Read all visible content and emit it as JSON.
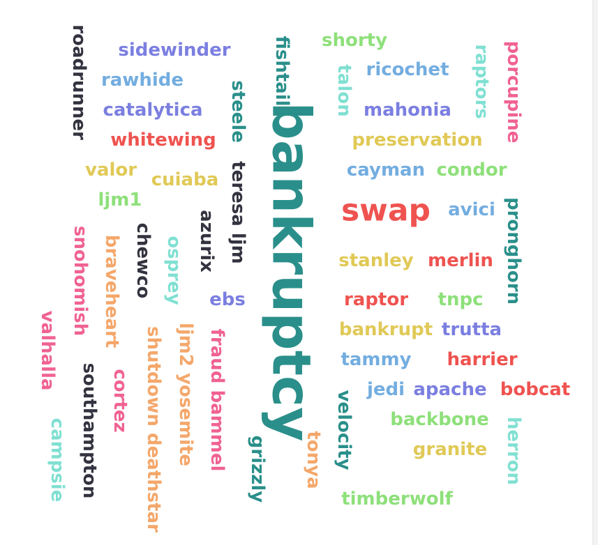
{
  "colors": {
    "coral": "#ef5350",
    "pink": "#f06292",
    "teal": "#2a8f8a",
    "aqua": "#80e0d2",
    "blue": "#73ade0",
    "violet": "#7b7fe0",
    "green": "#8ee07a",
    "yellow": "#e0c956",
    "orange": "#f4a76a",
    "dark": "#333340"
  },
  "words": [
    {
      "text": "bankruptcy",
      "color": "teal"
    },
    {
      "text": "swap",
      "color": "coral"
    },
    {
      "text": "roadrunner",
      "color": "dark"
    },
    {
      "text": "sidewinder",
      "color": "violet"
    },
    {
      "text": "rawhide",
      "color": "blue"
    },
    {
      "text": "catalytica",
      "color": "violet"
    },
    {
      "text": "whitewing",
      "color": "coral"
    },
    {
      "text": "valor",
      "color": "yellow"
    },
    {
      "text": "cuiaba",
      "color": "yellow"
    },
    {
      "text": "ljm1",
      "color": "green"
    },
    {
      "text": "fishtail",
      "color": "teal"
    },
    {
      "text": "steele",
      "color": "teal"
    },
    {
      "text": "teresa ljm",
      "color": "dark"
    },
    {
      "text": "azurix",
      "color": "dark"
    },
    {
      "text": "shorty",
      "color": "green"
    },
    {
      "text": "talon",
      "color": "aqua"
    },
    {
      "text": "ricochet",
      "color": "blue"
    },
    {
      "text": "mahonia",
      "color": "violet"
    },
    {
      "text": "raptors",
      "color": "aqua"
    },
    {
      "text": "porcupine",
      "color": "pink"
    },
    {
      "text": "preservation",
      "color": "yellow"
    },
    {
      "text": "cayman",
      "color": "blue"
    },
    {
      "text": "condor",
      "color": "green"
    },
    {
      "text": "avici",
      "color": "blue"
    },
    {
      "text": "pronghorn",
      "color": "teal"
    },
    {
      "text": "stanley",
      "color": "yellow"
    },
    {
      "text": "merlin",
      "color": "coral"
    },
    {
      "text": "raptor",
      "color": "coral"
    },
    {
      "text": "tnpc",
      "color": "green"
    },
    {
      "text": "bankrupt",
      "color": "yellow"
    },
    {
      "text": "trutta",
      "color": "violet"
    },
    {
      "text": "tammy",
      "color": "blue"
    },
    {
      "text": "harrier",
      "color": "coral"
    },
    {
      "text": "jedi",
      "color": "blue"
    },
    {
      "text": "apache",
      "color": "violet"
    },
    {
      "text": "bobcat",
      "color": "coral"
    },
    {
      "text": "backbone",
      "color": "green"
    },
    {
      "text": "granite",
      "color": "yellow"
    },
    {
      "text": "herron",
      "color": "aqua"
    },
    {
      "text": "timberwolf",
      "color": "green"
    },
    {
      "text": "velocity",
      "color": "teal"
    },
    {
      "text": "tonya",
      "color": "orange"
    },
    {
      "text": "grizzly",
      "color": "teal"
    },
    {
      "text": "fraud bammel",
      "color": "pink"
    },
    {
      "text": "ljm2 yosemite",
      "color": "orange"
    },
    {
      "text": "shutdown deathstar",
      "color": "orange"
    },
    {
      "text": "ebs",
      "color": "violet"
    },
    {
      "text": "osprey",
      "color": "aqua"
    },
    {
      "text": "chewco",
      "color": "dark"
    },
    {
      "text": "braveheart",
      "color": "orange"
    },
    {
      "text": "snohomish",
      "color": "pink"
    },
    {
      "text": "valhalla",
      "color": "pink"
    },
    {
      "text": "southampton",
      "color": "dark"
    },
    {
      "text": "cortez",
      "color": "pink"
    },
    {
      "text": "campsie",
      "color": "aqua"
    }
  ]
}
